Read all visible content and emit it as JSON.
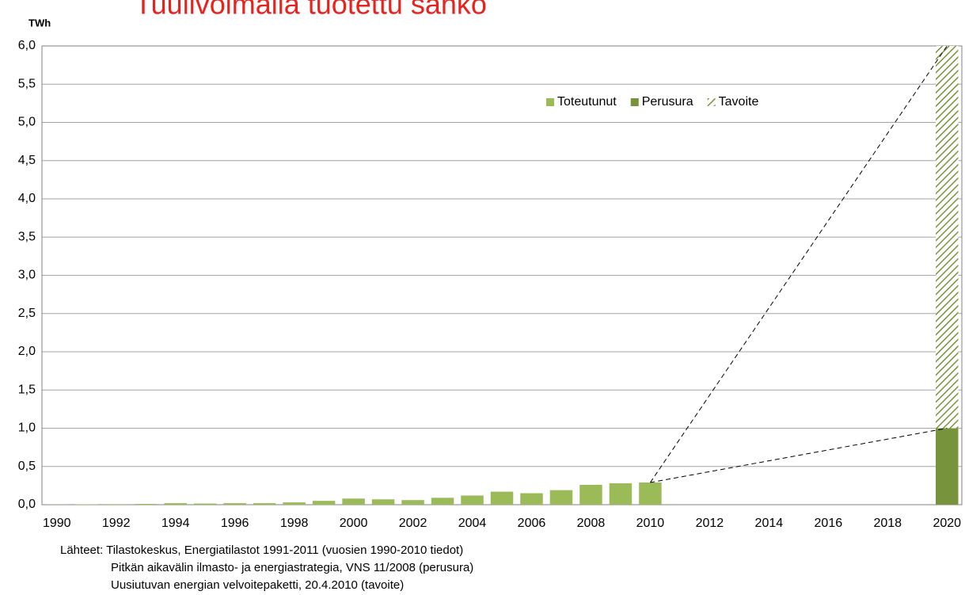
{
  "chart_data": {
    "type": "bar",
    "title": "Tuulivoimalla tuotettu sähkö",
    "y_label": "TWh",
    "categories": [
      "1990",
      null,
      "1992",
      null,
      "1994",
      null,
      "1996",
      null,
      "1998",
      null,
      "2000",
      null,
      "2002",
      null,
      "2004",
      null,
      "2006",
      null,
      "2008",
      null,
      "2010",
      null,
      "2012",
      null,
      "2014",
      null,
      "2016",
      null,
      "2018",
      null,
      "2020"
    ],
    "series": [
      {
        "name": "Toteutunut",
        "color": "#9bbb59",
        "values": [
          0.003,
          0.005,
          0.007,
          0.01,
          0.02,
          0.015,
          0.02,
          0.02,
          0.03,
          0.05,
          0.08,
          0.07,
          0.06,
          0.09,
          0.12,
          0.17,
          0.15,
          0.19,
          0.26,
          0.28,
          0.29,
          null,
          null,
          null,
          null,
          null,
          null,
          null,
          null,
          null,
          null
        ]
      },
      {
        "name": "Perusura",
        "color": "#77933c",
        "values": [
          null,
          null,
          null,
          null,
          null,
          null,
          null,
          null,
          null,
          null,
          null,
          null,
          null,
          null,
          null,
          null,
          null,
          null,
          null,
          null,
          null,
          null,
          null,
          null,
          null,
          null,
          null,
          null,
          null,
          null,
          1.0
        ]
      },
      {
        "name": "Tavoite",
        "color": "#77933c",
        "hatch": true,
        "stacked": true,
        "values": [
          null,
          null,
          null,
          null,
          null,
          null,
          null,
          null,
          null,
          null,
          null,
          null,
          null,
          null,
          null,
          null,
          null,
          null,
          null,
          null,
          null,
          null,
          null,
          null,
          null,
          null,
          null,
          null,
          null,
          null,
          5.0
        ]
      }
    ],
    "ylim": [
      0,
      6
    ],
    "yticks": [
      {
        "value": 0,
        "label": "0,0"
      },
      {
        "value": 0.5,
        "label": "0,5"
      },
      {
        "value": 1,
        "label": "1,0"
      },
      {
        "value": 1.5,
        "label": "1,5"
      },
      {
        "value": 2,
        "label": "2,0"
      },
      {
        "value": 2.5,
        "label": "2,5"
      },
      {
        "value": 3,
        "label": "3,0"
      },
      {
        "value": 3.5,
        "label": "3,5"
      },
      {
        "value": 4,
        "label": "4,0"
      },
      {
        "value": 4.5,
        "label": "4,5"
      },
      {
        "value": 5,
        "label": "5,0"
      },
      {
        "value": 5.5,
        "label": "5,5"
      },
      {
        "value": 6,
        "label": "6,0"
      }
    ],
    "grid": true,
    "legend": "top-right",
    "sources": [
      "Lähteet: Tilastokeskus, Energiatilastot 1991-2011 (vuosien 1990-2010 tiedot)",
      "Pitkän aikavälin ilmasto- ja energiastrategia, VNS 11/2008 (perusura)",
      "Uusiutuvan energian velvoitepaketti, 20.4.2010 (tavoite)"
    ]
  }
}
